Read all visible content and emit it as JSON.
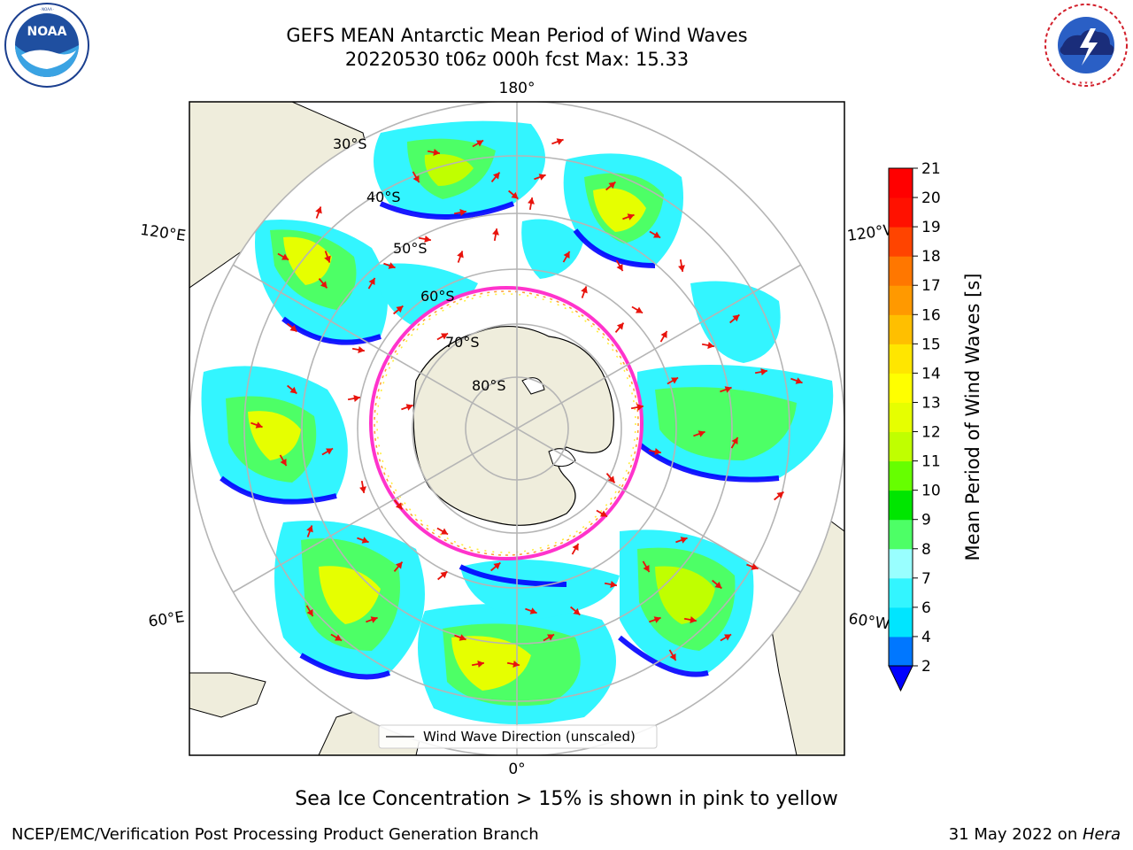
{
  "header": {
    "title_line1": "GEFS MEAN Antarctic Mean Period of Wind Waves",
    "title_line2": "20220530 t06z 000h fcst   Max: 15.33"
  },
  "logos": {
    "left": {
      "text": "NOAA",
      "icon": "noaa-logo-icon",
      "ring_text": "NATIONAL OCEANIC AND ATMOSPHERIC ADMINISTRATION · U.S. DEPARTMENT OF COMMERCE"
    },
    "right": {
      "icon": "nws-logo-icon",
      "ring_text": "NATIONAL WEATHER SERVICE"
    }
  },
  "map": {
    "projection": "south-polar-stereographic",
    "longitude_labels": {
      "top": "180°",
      "left_upper": "120°E",
      "right_upper": "120°W",
      "left_lower": "60°E",
      "right_lower": "60°W",
      "bottom": "0°"
    },
    "latitude_labels": [
      "30°S",
      "40°S",
      "50°S",
      "60°S",
      "70°S",
      "80°S"
    ],
    "legend_label": "Wind Wave Direction (unscaled)",
    "arrow_color": "#e8130c",
    "land_color": "#efeddc",
    "sea_ice_colors": [
      "#ff33cc",
      "#ff9933",
      "#ffee33"
    ]
  },
  "colorbar": {
    "label": "Mean Period of Wind Waves [s]",
    "ticks": [
      "2",
      "4",
      "6",
      "7",
      "8",
      "9",
      "10",
      "11",
      "12",
      "13",
      "14",
      "15",
      "16",
      "17",
      "18",
      "19",
      "20",
      "21"
    ],
    "colors": [
      "#0077ff",
      "#00e5ff",
      "#33f5ff",
      "#99ffff",
      "#4dff66",
      "#00e600",
      "#66ff00",
      "#c0ff00",
      "#e6ff00",
      "#ffff00",
      "#ffe600",
      "#ffbf00",
      "#ff9900",
      "#ff7700",
      "#ff4400",
      "#ff1100",
      "#ff0000"
    ],
    "under_color": "#0000ff"
  },
  "footnote": "Sea Ice Concentration > 15% is shown in pink to yellow",
  "footer": {
    "left": "NCEP/EMC/Verification Post Processing Product Generation Branch",
    "right_date": "31 May 2022 on ",
    "right_machine": "Hera"
  }
}
